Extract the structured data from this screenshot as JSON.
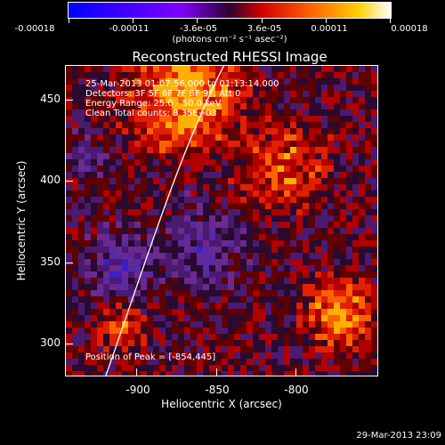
{
  "colorbar": {
    "tick_labels": [
      "-0.00018",
      "-0.00011",
      "-3.6e-05",
      "3.6e-05",
      "0.00011",
      "0.00018"
    ],
    "units": "(photons cm⁻² s⁻¹ asec⁻²)",
    "colors": [
      "#0000ff",
      "#7f00ff",
      "#ff0000",
      "#ff7f00",
      "#ffff80",
      "#ffffff"
    ]
  },
  "plot": {
    "title": "Reconstructed RHESSI Image",
    "info": {
      "time_range": "25-Mar-2013 01:07:56.000 to 01:13:14.000",
      "detectors": "Detectors: 3F 5F 6F 7F 8F 9F, Att 0",
      "energy": "Energy Range: 25.0 - 50.0 keV",
      "clean": "Clean     Total counts: 8.35E+03"
    },
    "peak": "Position of Peak = [-854,445]",
    "x_axis_label": "Heliocentric X (arcsec)",
    "y_axis_label": "Heliocentric Y (arcsec)",
    "x_ticks": [
      "-900",
      "-850",
      "-800"
    ],
    "y_ticks": [
      "450",
      "400",
      "350",
      "300"
    ]
  },
  "timestamp": "29-Mar-2013 23:09"
}
